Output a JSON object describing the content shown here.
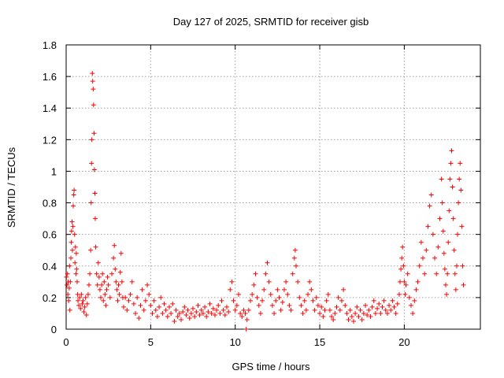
{
  "chart_data": {
    "type": "scatter",
    "title": "Day 127 of 2025, SRMTID for receiver gisb",
    "xlabel": "GPS time / hours",
    "ylabel": "SRMTID / TECUs",
    "xlim": [
      0,
      24.5
    ],
    "ylim": [
      0,
      1.8
    ],
    "xticks": [
      0,
      5,
      10,
      15,
      20
    ],
    "xtick_labels": [
      "0",
      "5",
      "10",
      "15",
      "20"
    ],
    "yticks": [
      0,
      0.2,
      0.4,
      0.6,
      0.8,
      1.0,
      1.2,
      1.4,
      1.6,
      1.8
    ],
    "ytick_labels": [
      "0",
      "0.2",
      "0.4",
      "0.6",
      "0.8",
      "1",
      "1.2",
      "1.4",
      "1.6",
      "1.8"
    ],
    "grid": true,
    "marker": "+",
    "color": "#ff0000",
    "series": [
      {
        "name": "SRMTID",
        "points": [
          [
            0.02,
            0.33
          ],
          [
            0.05,
            0.28
          ],
          [
            0.08,
            0.35
          ],
          [
            0.1,
            0.22
          ],
          [
            0.12,
            0.3
          ],
          [
            0.15,
            0.18
          ],
          [
            0.18,
            0.26
          ],
          [
            0.2,
            0.4
          ],
          [
            0.22,
            0.12
          ],
          [
            0.25,
            0.3
          ],
          [
            0.28,
            0.45
          ],
          [
            0.3,
            0.55
          ],
          [
            0.32,
            0.62
          ],
          [
            0.35,
            0.68
          ],
          [
            0.37,
            0.5
          ],
          [
            0.4,
            0.65
          ],
          [
            0.42,
            0.78
          ],
          [
            0.45,
            0.85
          ],
          [
            0.47,
            0.88
          ],
          [
            0.5,
            0.6
          ],
          [
            0.52,
            0.42
          ],
          [
            0.55,
            0.52
          ],
          [
            0.58,
            0.35
          ],
          [
            0.6,
            0.48
          ],
          [
            0.62,
            0.38
          ],
          [
            0.65,
            0.3
          ],
          [
            0.68,
            0.22
          ],
          [
            0.7,
            0.18
          ],
          [
            0.75,
            0.15
          ],
          [
            0.8,
            0.2
          ],
          [
            0.85,
            0.13
          ],
          [
            0.9,
            0.22
          ],
          [
            0.95,
            0.16
          ],
          [
            1.0,
            0.18
          ],
          [
            1.05,
            0.11
          ],
          [
            1.1,
            0.14
          ],
          [
            1.15,
            0.2
          ],
          [
            1.2,
            0.09
          ],
          [
            1.25,
            0.16
          ],
          [
            1.3,
            0.22
          ],
          [
            1.35,
            0.28
          ],
          [
            1.4,
            0.35
          ],
          [
            1.45,
            0.5
          ],
          [
            1.48,
            0.8
          ],
          [
            1.5,
            1.05
          ],
          [
            1.52,
            1.2
          ],
          [
            1.55,
            1.62
          ],
          [
            1.57,
            1.57
          ],
          [
            1.6,
            1.52
          ],
          [
            1.62,
            1.42
          ],
          [
            1.65,
            1.24
          ],
          [
            1.67,
            1.01
          ],
          [
            1.7,
            0.86
          ],
          [
            1.72,
            0.7
          ],
          [
            1.75,
            0.52
          ],
          [
            1.8,
            0.35
          ],
          [
            1.85,
            0.28
          ],
          [
            1.9,
            0.42
          ],
          [
            1.95,
            0.33
          ],
          [
            2.0,
            0.25
          ],
          [
            2.05,
            0.2
          ],
          [
            2.1,
            0.28
          ],
          [
            2.15,
            0.35
          ],
          [
            2.2,
            0.18
          ],
          [
            2.25,
            0.3
          ],
          [
            2.3,
            0.22
          ],
          [
            2.35,
            0.15
          ],
          [
            2.4,
            0.25
          ],
          [
            2.45,
            0.33
          ],
          [
            2.5,
            0.28
          ],
          [
            2.6,
            0.2
          ],
          [
            2.7,
            0.35
          ],
          [
            2.8,
            0.45
          ],
          [
            2.85,
            0.53
          ],
          [
            2.9,
            0.38
          ],
          [
            2.95,
            0.3
          ],
          [
            3.0,
            0.25
          ],
          [
            3.05,
            0.18
          ],
          [
            3.1,
            0.28
          ],
          [
            3.15,
            0.22
          ],
          [
            3.2,
            0.36
          ],
          [
            3.25,
            0.48
          ],
          [
            3.3,
            0.3
          ],
          [
            3.35,
            0.2
          ],
          [
            3.4,
            0.14
          ],
          [
            3.5,
            0.2
          ],
          [
            3.6,
            0.12
          ],
          [
            3.7,
            0.18
          ],
          [
            3.8,
            0.22
          ],
          [
            3.9,
            0.3
          ],
          [
            4.0,
            0.16
          ],
          [
            4.1,
            0.1
          ],
          [
            4.2,
            0.2
          ],
          [
            4.3,
            0.07
          ],
          [
            4.4,
            0.15
          ],
          [
            4.5,
            0.25
          ],
          [
            4.6,
            0.12
          ],
          [
            4.7,
            0.18
          ],
          [
            4.8,
            0.28
          ],
          [
            4.9,
            0.22
          ],
          [
            5.0,
            0.15
          ],
          [
            5.1,
            0.1
          ],
          [
            5.2,
            0.18
          ],
          [
            5.3,
            0.12
          ],
          [
            5.4,
            0.08
          ],
          [
            5.5,
            0.14
          ],
          [
            5.6,
            0.2
          ],
          [
            5.7,
            0.1
          ],
          [
            5.8,
            0.16
          ],
          [
            5.9,
            0.12
          ],
          [
            6.0,
            0.08
          ],
          [
            6.1,
            0.14
          ],
          [
            6.2,
            0.1
          ],
          [
            6.3,
            0.16
          ],
          [
            6.4,
            0.05
          ],
          [
            6.5,
            0.12
          ],
          [
            6.6,
            0.08
          ],
          [
            6.7,
            0.1
          ],
          [
            6.8,
            0.06
          ],
          [
            6.9,
            0.11
          ],
          [
            7.0,
            0.14
          ],
          [
            7.1,
            0.09
          ],
          [
            7.2,
            0.12
          ],
          [
            7.3,
            0.07
          ],
          [
            7.4,
            0.1
          ],
          [
            7.5,
            0.13
          ],
          [
            7.6,
            0.08
          ],
          [
            7.7,
            0.11
          ],
          [
            7.8,
            0.15
          ],
          [
            7.9,
            0.09
          ],
          [
            8.0,
            0.12
          ],
          [
            8.1,
            0.1
          ],
          [
            8.2,
            0.14
          ],
          [
            8.3,
            0.08
          ],
          [
            8.4,
            0.11
          ],
          [
            8.5,
            0.16
          ],
          [
            8.6,
            0.1
          ],
          [
            8.7,
            0.13
          ],
          [
            8.8,
            0.09
          ],
          [
            8.9,
            0.12
          ],
          [
            9.0,
            0.15
          ],
          [
            9.1,
            0.1
          ],
          [
            9.2,
            0.18
          ],
          [
            9.3,
            0.12
          ],
          [
            9.4,
            0.09
          ],
          [
            9.5,
            0.14
          ],
          [
            9.6,
            0.11
          ],
          [
            9.7,
            0.25
          ],
          [
            9.8,
            0.3
          ],
          [
            9.9,
            0.18
          ],
          [
            10.0,
            0.12
          ],
          [
            10.1,
            0.15
          ],
          [
            10.2,
            0.22
          ],
          [
            10.3,
            0.1
          ],
          [
            10.4,
            0.08
          ],
          [
            10.5,
            0.12
          ],
          [
            10.6,
            0.1
          ],
          [
            10.65,
            0.0
          ],
          [
            10.7,
            0.06
          ],
          [
            10.8,
            0.12
          ],
          [
            10.9,
            0.18
          ],
          [
            11.0,
            0.22
          ],
          [
            11.1,
            0.28
          ],
          [
            11.2,
            0.35
          ],
          [
            11.3,
            0.2
          ],
          [
            11.4,
            0.15
          ],
          [
            11.5,
            0.1
          ],
          [
            11.6,
            0.18
          ],
          [
            11.7,
            0.25
          ],
          [
            11.8,
            0.35
          ],
          [
            11.9,
            0.42
          ],
          [
            12.0,
            0.3
          ],
          [
            12.1,
            0.22
          ],
          [
            12.2,
            0.15
          ],
          [
            12.3,
            0.1
          ],
          [
            12.4,
            0.18
          ],
          [
            12.5,
            0.25
          ],
          [
            12.6,
            0.2
          ],
          [
            12.7,
            0.12
          ],
          [
            12.8,
            0.17
          ],
          [
            12.9,
            0.25
          ],
          [
            13.0,
            0.3
          ],
          [
            13.1,
            0.22
          ],
          [
            13.2,
            0.15
          ],
          [
            13.3,
            0.12
          ],
          [
            13.4,
            0.35
          ],
          [
            13.5,
            0.45
          ],
          [
            13.55,
            0.5
          ],
          [
            13.6,
            0.4
          ],
          [
            13.7,
            0.3
          ],
          [
            13.8,
            0.2
          ],
          [
            13.9,
            0.15
          ],
          [
            14.0,
            0.1
          ],
          [
            14.1,
            0.18
          ],
          [
            14.2,
            0.12
          ],
          [
            14.3,
            0.22
          ],
          [
            14.4,
            0.3
          ],
          [
            14.5,
            0.25
          ],
          [
            14.6,
            0.18
          ],
          [
            14.7,
            0.12
          ],
          [
            14.8,
            0.2
          ],
          [
            14.9,
            0.15
          ],
          [
            15.0,
            0.1
          ],
          [
            15.1,
            0.14
          ],
          [
            15.2,
            0.08
          ],
          [
            15.3,
            0.12
          ],
          [
            15.4,
            0.18
          ],
          [
            15.5,
            0.22
          ],
          [
            15.6,
            0.12
          ],
          [
            15.7,
            0.08
          ],
          [
            15.8,
            0.06
          ],
          [
            15.9,
            0.1
          ],
          [
            16.0,
            0.14
          ],
          [
            16.1,
            0.2
          ],
          [
            16.2,
            0.12
          ],
          [
            16.3,
            0.18
          ],
          [
            16.4,
            0.25
          ],
          [
            16.5,
            0.15
          ],
          [
            16.6,
            0.1
          ],
          [
            16.7,
            0.06
          ],
          [
            16.8,
            0.12
          ],
          [
            16.9,
            0.08
          ],
          [
            17.0,
            0.05
          ],
          [
            17.1,
            0.1
          ],
          [
            17.2,
            0.14
          ],
          [
            17.3,
            0.08
          ],
          [
            17.4,
            0.12
          ],
          [
            17.5,
            0.06
          ],
          [
            17.6,
            0.1
          ],
          [
            17.7,
            0.15
          ],
          [
            17.8,
            0.09
          ],
          [
            17.9,
            0.12
          ],
          [
            18.0,
            0.08
          ],
          [
            18.1,
            0.14
          ],
          [
            18.2,
            0.18
          ],
          [
            18.3,
            0.1
          ],
          [
            18.4,
            0.13
          ],
          [
            18.5,
            0.16
          ],
          [
            18.6,
            0.1
          ],
          [
            18.7,
            0.14
          ],
          [
            18.8,
            0.18
          ],
          [
            18.9,
            0.12
          ],
          [
            19.0,
            0.1
          ],
          [
            19.1,
            0.15
          ],
          [
            19.2,
            0.12
          ],
          [
            19.3,
            0.18
          ],
          [
            19.4,
            0.14
          ],
          [
            19.5,
            0.1
          ],
          [
            19.6,
            0.16
          ],
          [
            19.7,
            0.22
          ],
          [
            19.75,
            0.3
          ],
          [
            19.8,
            0.38
          ],
          [
            19.85,
            0.45
          ],
          [
            19.9,
            0.52
          ],
          [
            19.95,
            0.4
          ],
          [
            20.0,
            0.3
          ],
          [
            20.05,
            0.22
          ],
          [
            20.1,
            0.28
          ],
          [
            20.2,
            0.35
          ],
          [
            20.3,
            0.2
          ],
          [
            20.4,
            0.15
          ],
          [
            20.5,
            0.1
          ],
          [
            20.6,
            0.18
          ],
          [
            20.7,
            0.25
          ],
          [
            20.8,
            0.3
          ],
          [
            20.9,
            0.4
          ],
          [
            21.0,
            0.55
          ],
          [
            21.1,
            0.45
          ],
          [
            21.2,
            0.35
          ],
          [
            21.3,
            0.5
          ],
          [
            21.4,
            0.65
          ],
          [
            21.5,
            0.78
          ],
          [
            21.6,
            0.85
          ],
          [
            21.7,
            0.6
          ],
          [
            21.8,
            0.45
          ],
          [
            21.9,
            0.35
          ],
          [
            22.0,
            0.52
          ],
          [
            22.1,
            0.7
          ],
          [
            22.2,
            0.95
          ],
          [
            22.25,
            0.8
          ],
          [
            22.3,
            0.62
          ],
          [
            22.35,
            0.48
          ],
          [
            22.4,
            0.38
          ],
          [
            22.45,
            0.28
          ],
          [
            22.5,
            0.22
          ],
          [
            22.55,
            0.35
          ],
          [
            22.6,
            0.55
          ],
          [
            22.65,
            0.75
          ],
          [
            22.7,
            0.95
          ],
          [
            22.75,
            1.05
          ],
          [
            22.8,
            1.13
          ],
          [
            22.85,
            0.9
          ],
          [
            22.9,
            0.7
          ],
          [
            22.95,
            0.5
          ],
          [
            23.0,
            0.35
          ],
          [
            23.05,
            0.25
          ],
          [
            23.1,
            0.4
          ],
          [
            23.15,
            0.6
          ],
          [
            23.2,
            0.8
          ],
          [
            23.25,
            0.95
          ],
          [
            23.3,
            1.05
          ],
          [
            23.35,
            0.88
          ],
          [
            23.4,
            0.65
          ],
          [
            23.45,
            0.4
          ],
          [
            23.5,
            0.28
          ]
        ]
      }
    ]
  }
}
